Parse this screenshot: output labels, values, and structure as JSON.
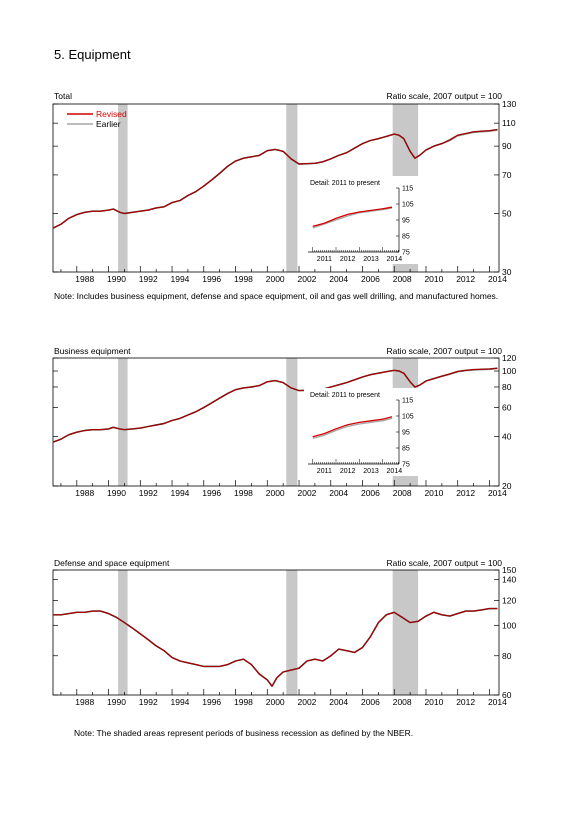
{
  "page_title": "5. Equipment",
  "recession_note": "Note: The shaded areas represent periods of business recession as defined by the NBER.",
  "colors": {
    "revised": "#d40000",
    "earlier": "#a6a6a6",
    "line_dark": "#5a0000",
    "recession": "#c8c8c8"
  },
  "chart_data": [
    {
      "type": "line",
      "title": "Total",
      "scale_note": "Ratio scale, 2007 output = 100",
      "note": "Note: Includes business equipment, defense and space equipment, oil and gas well drilling, and manufactured homes.",
      "log_scale": true,
      "xlim": [
        1986.5,
        2014.6
      ],
      "ylim": [
        30,
        130
      ],
      "y_ticks": [
        30,
        50,
        70,
        90,
        110,
        130
      ],
      "x_ticks": [
        "1988",
        "1990",
        "1992",
        "1994",
        "1996",
        "1998",
        "2000",
        "2002",
        "2004",
        "2006",
        "2008",
        "2010",
        "2012",
        "2014"
      ],
      "legend": {
        "placement": "top-left",
        "entries": [
          "Revised",
          "Earlier"
        ]
      },
      "recessions": [
        [
          1990.6,
          1991.2
        ],
        [
          2001.2,
          2001.9
        ],
        [
          2007.9,
          2009.5
        ]
      ],
      "series": [
        {
          "name": "Revised",
          "x": [
            1986.5,
            1987,
            1987.5,
            1988,
            1988.5,
            1989,
            1989.5,
            1990,
            1990.3,
            1990.7,
            1991,
            1991.5,
            1992,
            1992.5,
            1993,
            1993.5,
            1994,
            1994.5,
            1995,
            1995.5,
            1996,
            1996.5,
            1997,
            1997.5,
            1998,
            1998.5,
            1999,
            1999.5,
            2000,
            2000.5,
            2001,
            2001.5,
            2002,
            2002.5,
            2003,
            2003.5,
            2004,
            2004.5,
            2005,
            2005.5,
            2006,
            2006.5,
            2007,
            2007.5,
            2008,
            2008.3,
            2008.6,
            2009,
            2009.3,
            2009.6,
            2010,
            2010.5,
            2011,
            2011.5,
            2012,
            2012.5,
            2013,
            2013.5,
            2014,
            2014.5
          ],
          "y": [
            44,
            45.5,
            48,
            49.5,
            50.5,
            51,
            51,
            51.5,
            52,
            50.5,
            50,
            50.5,
            51,
            51.5,
            52.5,
            53,
            55,
            56,
            58.5,
            60.5,
            63.5,
            67,
            71,
            75.5,
            79,
            81,
            82,
            83,
            86.5,
            87.5,
            86,
            80.5,
            77,
            77.2,
            77.5,
            78.5,
            80.5,
            83,
            85,
            88.5,
            92,
            94.5,
            96,
            98,
            100,
            99,
            96,
            86,
            81,
            83,
            87,
            90,
            92,
            95,
            99,
            100.5,
            102,
            102.5,
            103,
            104
          ]
        },
        {
          "name": "Earlier",
          "x": [
            1986.5,
            1987,
            1987.5,
            1988,
            1988.5,
            1989,
            1989.5,
            1990,
            1990.3,
            1990.7,
            1991,
            1991.5,
            1992,
            1992.5,
            1993,
            1993.5,
            1994,
            1994.5,
            1995,
            1995.5,
            1996,
            1996.5,
            1997,
            1997.5,
            1998,
            1998.5,
            1999,
            1999.5,
            2000,
            2000.5,
            2001,
            2001.5,
            2002,
            2002.5,
            2003,
            2003.5,
            2004,
            2004.5,
            2005,
            2005.5,
            2006,
            2006.5,
            2007,
            2007.5,
            2008,
            2008.3,
            2008.6,
            2009,
            2009.3,
            2009.6,
            2010,
            2010.5,
            2011,
            2011.5,
            2012,
            2012.5,
            2013,
            2013.5,
            2014,
            2014.5
          ],
          "y": [
            44,
            45.5,
            48,
            49.5,
            50.5,
            51,
            51,
            51.5,
            52,
            50.5,
            50,
            50.5,
            51,
            51.5,
            52.5,
            53,
            55,
            56,
            58.5,
            60.5,
            63.5,
            67,
            71,
            75.5,
            79,
            81,
            82,
            83,
            86.5,
            87.5,
            86,
            80.5,
            77,
            77.2,
            77.5,
            78.5,
            80.5,
            83,
            85,
            88.5,
            92,
            94.5,
            96,
            98,
            100,
            99,
            96,
            86,
            81,
            83,
            87,
            90,
            92,
            94.5,
            98.5,
            100,
            101.5,
            102,
            102.5,
            103.5
          ]
        }
      ],
      "inset": {
        "title": "Detail: 2011 to present",
        "xlim": [
          2010.8,
          2014.7
        ],
        "ylim": [
          75,
          115
        ],
        "y_ticks": [
          75,
          85,
          95,
          105,
          115
        ],
        "x_ticks": [
          "2011",
          "2012",
          "2013",
          "2014"
        ],
        "series": [
          {
            "name": "Revised",
            "x": [
              2011,
              2011.5,
              2012,
              2012.5,
              2013,
              2013.5,
              2014,
              2014.4
            ],
            "y": [
              91,
              93,
              96,
              98.5,
              100,
              101,
              102,
              103
            ]
          },
          {
            "name": "Earlier",
            "x": [
              2011,
              2011.5,
              2012,
              2012.5,
              2013,
              2013.5,
              2014,
              2014.4
            ],
            "y": [
              90,
              92.5,
              95,
              97.5,
              99.5,
              100.5,
              101.5,
              102.5
            ]
          }
        ]
      }
    },
    {
      "type": "line",
      "title": "Business equipment",
      "scale_note": "Ratio scale, 2007 output = 100",
      "log_scale": true,
      "xlim": [
        1986.5,
        2014.6
      ],
      "ylim": [
        20,
        120
      ],
      "y_ticks": [
        20,
        40,
        60,
        80,
        100,
        120
      ],
      "x_ticks": [
        "1988",
        "1990",
        "1992",
        "1994",
        "1996",
        "1998",
        "2000",
        "2002",
        "2004",
        "2006",
        "2008",
        "2010",
        "2012",
        "2014"
      ],
      "recessions": [
        [
          1990.6,
          1991.2
        ],
        [
          2001.2,
          2001.9
        ],
        [
          2007.9,
          2009.5
        ]
      ],
      "series": [
        {
          "name": "Revised",
          "x": [
            1986.5,
            1987,
            1987.5,
            1988,
            1988.5,
            1989,
            1989.5,
            1990,
            1990.3,
            1990.7,
            1991,
            1991.5,
            1992,
            1992.5,
            1993,
            1993.5,
            1994,
            1994.5,
            1995,
            1995.5,
            1996,
            1996.5,
            1997,
            1997.5,
            1998,
            1998.5,
            1999,
            1999.5,
            2000,
            2000.5,
            2001,
            2001.5,
            2002,
            2002.5,
            2003,
            2003.5,
            2004,
            2004.5,
            2005,
            2005.5,
            2006,
            2006.5,
            2007,
            2007.5,
            2008,
            2008.3,
            2008.6,
            2009,
            2009.3,
            2009.6,
            2010,
            2010.5,
            2011,
            2011.5,
            2012,
            2012.5,
            2013,
            2013.5,
            2014,
            2014.5
          ],
          "y": [
            37,
            38.5,
            41,
            42.5,
            43.5,
            44,
            44,
            44.5,
            45.5,
            44.5,
            44,
            44.5,
            45,
            46,
            47,
            48,
            50,
            51.5,
            54,
            56.5,
            60,
            64,
            68.5,
            73,
            77,
            79,
            80,
            81.5,
            86,
            87.5,
            85,
            79,
            76,
            76.3,
            76.5,
            77.5,
            80,
            82.5,
            85,
            88.5,
            92,
            95,
            97,
            99,
            101,
            100,
            97,
            86,
            80,
            82,
            87,
            90,
            93,
            96,
            99.5,
            101,
            102,
            102.5,
            103,
            104
          ]
        },
        {
          "name": "Earlier",
          "x": [
            1986.5,
            1987,
            1987.5,
            1988,
            1988.5,
            1989,
            1989.5,
            1990,
            1990.3,
            1990.7,
            1991,
            1991.5,
            1992,
            1992.5,
            1993,
            1993.5,
            1994,
            1994.5,
            1995,
            1995.5,
            1996,
            1996.5,
            1997,
            1997.5,
            1998,
            1998.5,
            1999,
            1999.5,
            2000,
            2000.5,
            2001,
            2001.5,
            2002,
            2002.5,
            2003,
            2003.5,
            2004,
            2004.5,
            2005,
            2005.5,
            2006,
            2006.5,
            2007,
            2007.5,
            2008,
            2008.3,
            2008.6,
            2009,
            2009.3,
            2009.6,
            2010,
            2010.5,
            2011,
            2011.5,
            2012,
            2012.5,
            2013,
            2013.5,
            2014,
            2014.5
          ],
          "y": [
            37,
            38.5,
            41,
            42.5,
            43.5,
            44,
            44,
            44.5,
            45.5,
            44.5,
            44,
            44.5,
            45,
            46,
            47,
            48,
            50,
            51.5,
            54,
            56.5,
            60,
            64,
            68.5,
            73,
            77,
            79,
            80,
            81.5,
            86,
            87.5,
            85,
            79,
            76,
            76.3,
            76.5,
            77.5,
            80,
            82.5,
            85,
            88.5,
            92,
            95,
            97,
            99,
            101,
            100,
            97,
            86,
            80,
            82,
            87,
            90,
            93,
            95.5,
            99,
            100.5,
            101.5,
            102,
            102.5,
            103.5
          ]
        }
      ],
      "inset": {
        "title": "Detail: 2011 to present",
        "xlim": [
          2010.8,
          2014.7
        ],
        "ylim": [
          75,
          115
        ],
        "y_ticks": [
          75,
          85,
          95,
          105,
          115
        ],
        "x_ticks": [
          "2011",
          "2012",
          "2013",
          "2014"
        ],
        "series": [
          {
            "name": "Revised",
            "x": [
              2011,
              2011.5,
              2012,
              2012.5,
              2013,
              2013.5,
              2014,
              2014.4
            ],
            "y": [
              92,
              94,
              97,
              99.5,
              101,
              102,
              103,
              104.5
            ]
          },
          {
            "name": "Earlier",
            "x": [
              2011,
              2011.5,
              2012,
              2012.5,
              2013,
              2013.5,
              2014,
              2014.4
            ],
            "y": [
              91,
              93,
              96,
              98.5,
              100,
              101,
              102,
              103.5
            ]
          }
        ]
      }
    },
    {
      "type": "line",
      "title": "Defense and space equipment",
      "scale_note": "Ratio scale, 2007 output = 100",
      "log_scale": true,
      "xlim": [
        1986.5,
        2014.6
      ],
      "ylim": [
        60,
        150
      ],
      "y_ticks": [
        60,
        80,
        100,
        120,
        140,
        150
      ],
      "x_ticks": [
        "1988",
        "1990",
        "1992",
        "1994",
        "1996",
        "1998",
        "2000",
        "2002",
        "2004",
        "2006",
        "2008",
        "2010",
        "2012",
        "2014"
      ],
      "recessions": [
        [
          1990.6,
          1991.2
        ],
        [
          2001.2,
          2001.9
        ],
        [
          2007.9,
          2009.5
        ]
      ],
      "series": [
        {
          "name": "Revised",
          "x": [
            1986.5,
            1987,
            1987.5,
            1988,
            1988.5,
            1989,
            1989.5,
            1990,
            1990.5,
            1991,
            1991.5,
            1992,
            1992.5,
            1993,
            1993.5,
            1994,
            1994.5,
            1995,
            1995.5,
            1996,
            1996.5,
            1997,
            1997.5,
            1998,
            1998.5,
            1999,
            1999.5,
            2000,
            2000.3,
            2000.6,
            2001,
            2001.5,
            2002,
            2002.5,
            2003,
            2003.5,
            2004,
            2004.5,
            2005,
            2005.5,
            2006,
            2006.5,
            2007,
            2007.5,
            2008,
            2008.5,
            2009,
            2009.5,
            2010,
            2010.5,
            2011,
            2011.5,
            2012,
            2012.5,
            2013,
            2013.5,
            2014,
            2014.5
          ],
          "y": [
            108,
            108,
            109,
            110,
            110,
            111,
            111,
            109,
            106,
            102,
            98,
            94,
            90,
            86,
            83,
            79,
            77,
            76,
            75,
            74,
            74,
            74,
            75,
            77,
            78,
            75,
            70,
            67,
            64,
            68,
            71,
            72,
            73,
            77,
            78,
            77,
            80,
            84,
            83,
            82,
            85,
            92,
            102,
            108,
            110,
            106,
            102,
            103,
            107,
            110,
            108,
            107,
            109,
            111,
            111,
            112,
            113,
            113
          ]
        },
        {
          "name": "Earlier",
          "x": [
            1986.5,
            1987,
            1987.5,
            1988,
            1988.5,
            1989,
            1989.5,
            1990,
            1990.5,
            1991,
            1991.5,
            1992,
            1992.5,
            1993,
            1993.5,
            1994,
            1994.5,
            1995,
            1995.5,
            1996,
            1996.5,
            1997,
            1997.5,
            1998,
            1998.5,
            1999,
            1999.5,
            2000,
            2000.3,
            2000.6,
            2001,
            2001.5,
            2002,
            2002.5,
            2003,
            2003.5,
            2004,
            2004.5,
            2005,
            2005.5,
            2006,
            2006.5,
            2007,
            2007.5,
            2008,
            2008.5,
            2009,
            2009.5,
            2010,
            2010.5,
            2011,
            2011.5,
            2012,
            2012.5,
            2013,
            2013.5,
            2014,
            2014.5
          ],
          "y": [
            108,
            108,
            109,
            110,
            110,
            111,
            111,
            109,
            106,
            102,
            98,
            94,
            90,
            86,
            83,
            79,
            77,
            76,
            75,
            74,
            74,
            74,
            75,
            77,
            78,
            75,
            70,
            67,
            64,
            68,
            71,
            72,
            73,
            77,
            78,
            77,
            80,
            84,
            83,
            82,
            85,
            92,
            102,
            108,
            110,
            106,
            102,
            103,
            107,
            110,
            108,
            107,
            109,
            111,
            111,
            112,
            113,
            113
          ]
        }
      ]
    }
  ]
}
